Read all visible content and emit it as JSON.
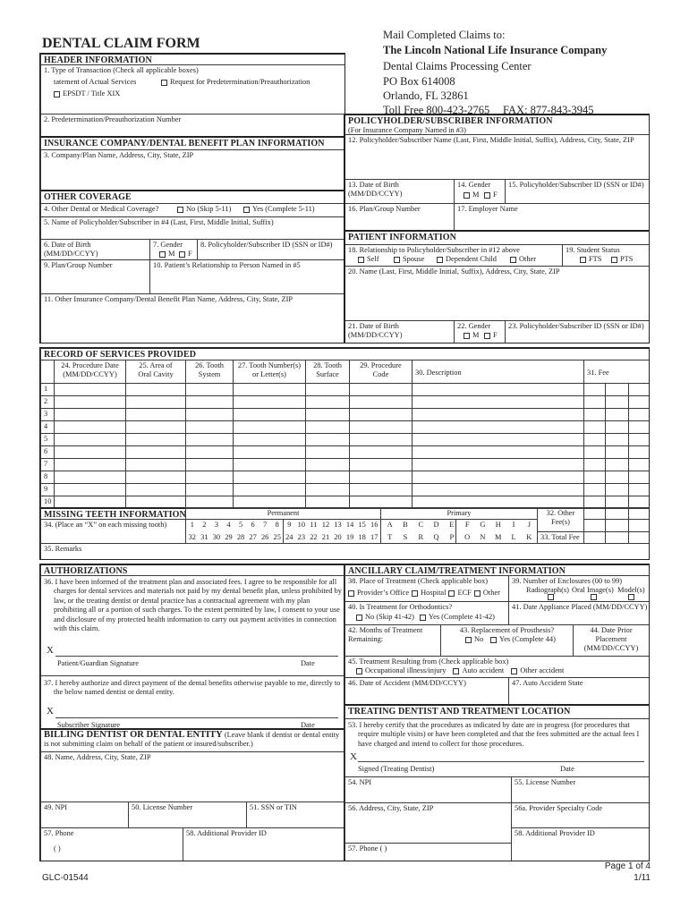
{
  "title": "DENTAL CLAIM FORM",
  "mail": {
    "line1": "Mail Completed Claims to:",
    "company": "The Lincoln National Life Insurance Company",
    "dept": "Dental Claims Processing Center",
    "pobox": "PO Box 614008",
    "city": "Orlando, FL 32861",
    "phone": "Toll Free 800-423-2765",
    "fax": "FAX: 877-843-3945"
  },
  "header_info": {
    "heading": "HEADER INFORMATION",
    "f1": "1. Type of Transaction (Check all applicable boxes)",
    "f1_opt_actual": "tatement of Actual Services",
    "f1_opt_predet": "Request for Predetermination/Preauthorization",
    "f1_opt_epsdt": "EPSDT / Title XIX",
    "f2": "2. Predetermination/Preauthorization Number"
  },
  "insurance": {
    "heading": "INSURANCE COMPANY/DENTAL BENEFIT PLAN INFORMATION",
    "f3": "3. Company/Plan Name, Address, City, State, ZIP"
  },
  "other_coverage": {
    "heading": "OTHER COVERAGE",
    "f4": "4. Other Dental or Medical Coverage?",
    "f4_no": "No (Skip 5-11)",
    "f4_yes": "Yes (Complete 5-11)",
    "f5": "5. Name of Policyholder/Subscriber in #4 (Last, First, Middle Initial, Suffix)",
    "f6": "6. Date of Birth (MM/DD/CCYY)",
    "f7": "7. Gender",
    "f8": "8. Policyholder/Subscriber ID (SSN or ID#)",
    "f9": "9. Plan/Group Number",
    "f10": "10. Patient’s Relationship to Person Named in #5",
    "f11": "11. Other Insurance Company/Dental Benefit Plan Name, Address, City, State, ZIP"
  },
  "gender": {
    "m": "M",
    "f": "F"
  },
  "policyholder": {
    "heading": "POLICYHOLDER/SUBSCRIBER INFORMATION",
    "subheading": "(For Insurance Company Named in #3)",
    "f12": "12. Policyholder/Subscriber Name (Last, First, Middle Initial, Suffix), Address, City, State, ZIP",
    "f13": "13. Date of Birth (MM/DD/CCYY)",
    "f14": "14. Gender",
    "f15": "15. Policyholder/Subscriber ID (SSN or ID#)",
    "f16": "16. Plan/Group Number",
    "f17": "17. Employer Name"
  },
  "patient": {
    "heading": "PATIENT INFORMATION",
    "f18": "18. Relationship to Policyholder/Subscriber in #12 above",
    "f18_opts": [
      "Self",
      "Spouse",
      "Dependent Child",
      "Other"
    ],
    "f19": "19. Student Status",
    "f19_opts": [
      "FTS",
      "PTS"
    ],
    "f20": "20. Name (Last, First, Middle Initial, Suffix), Address, City, State, ZIP",
    "f21": "21. Date of Birth (MM/DD/CCYY)",
    "f22": "22. Gender",
    "f23": "23. Policyholder/Subscriber ID (SSN or ID#)"
  },
  "services": {
    "heading": "RECORD OF SERVICES PROVIDED",
    "columns": [
      "",
      "24. Procedure Date\n(MM/DD/CCYY)",
      "25. Area of\nOral Cavity",
      "26. Tooth\nSystem",
      "27. Tooth Number(s)\nor Letter(s)",
      "28. Tooth\nSurface",
      "29. Procedure\nCode",
      "30. Description",
      "31. Fee"
    ],
    "rows": [
      "1",
      "2",
      "3",
      "4",
      "5",
      "6",
      "7",
      "8",
      "9",
      "10"
    ]
  },
  "missing_teeth": {
    "heading": "MISSING TEETH INFORMATION",
    "permanent": "Permanent",
    "primary": "Primary",
    "f34": "34. (Place an “X” on each missing tooth)",
    "perm_upper": [
      "1",
      "2",
      "3",
      "4",
      "5",
      "6",
      "7",
      "8",
      "9",
      "10",
      "11",
      "12",
      "13",
      "14",
      "15",
      "16"
    ],
    "perm_lower": [
      "32",
      "31",
      "30",
      "29",
      "28",
      "27",
      "26",
      "25",
      "24",
      "23",
      "22",
      "21",
      "20",
      "19",
      "18",
      "17"
    ],
    "prim_upper": [
      "A",
      "B",
      "C",
      "D",
      "E",
      "F",
      "G",
      "H",
      "I",
      "J"
    ],
    "prim_lower": [
      "T",
      "S",
      "R",
      "Q",
      "P",
      "O",
      "N",
      "M",
      "L",
      "K"
    ],
    "f32": "32. Other\nFee(s)",
    "f33": "33. Total Fee"
  },
  "remarks": "35. Remarks",
  "authorizations": {
    "heading": "AUTHORIZATIONS",
    "f36": "36. I have been informed of the treatment plan and associated fees. I agree to be responsible for all charges for dental services and materials not paid by my dental benefit plan, unless prohibited by law, or the treating dentist or dental practice has a contractual agreement with my plan prohibiting all or a portion of such charges. To the extent permitted by law, I consent to your use and disclosure of my protected health information to carry out payment activities in connection with this claim.",
    "x": "X",
    "patient_sig": "Patient/Guardian Signature",
    "date": "Date",
    "f37": "37. I hereby authorize and direct payment of the dental benefits otherwise payable to me, directly to the below named dentist or dental entity.",
    "subscriber_sig": "Subscriber Signature"
  },
  "billing": {
    "heading": "BILLING DENTIST OR DENTAL ENTITY",
    "note": "(Leave blank if dentist or dental entity is not submitting claim on behalf of the patient or insured/subscriber.)",
    "f48": "48. Name, Address, City, State, ZIP",
    "f49": "49. NPI",
    "f50": "50. License Number",
    "f51": "51. SSN or TIN",
    "f57": "57. Phone",
    "f57_paren": "(          )",
    "f58": "58. Additional Provider ID"
  },
  "ancillary": {
    "heading": "ANCILLARY CLAIM/TREATMENT INFORMATION",
    "f38": "38. Place of Treatment (Check applicable box)",
    "f38_opts": [
      "Provider’s Office",
      "Hospital",
      "ECF",
      "Other"
    ],
    "f39": "39. Number of Enclosures (00 to 99)",
    "f39_opts": [
      "Radiograph(s)",
      "Oral Image(s)",
      "Model(s)"
    ],
    "f40": "40. Is Treatment for Orthodontics?",
    "f40_no": "No (Skip 41-42)",
    "f40_yes": "Yes (Complete 41-42)",
    "f41": "41. Date Appliance Placed (MM/DD/CCYY)",
    "f42": "42. Months of Treatment\n      Remaining:",
    "f43": "43. Replacement of Prosthesis?",
    "f43_no": "No",
    "f43_yes": "Yes (Complete 44)",
    "f44": "44. Date Prior Placement\n(MM/DD/CCYY)",
    "f45": "45. Treatment Resulting from (Check applicable box)",
    "f45_opts": [
      "Occupational illness/injury",
      "Auto accident",
      "Other accident"
    ],
    "f46": "46. Date of Accident (MM/DD/CCYY)",
    "f47": "47. Auto Accident State"
  },
  "treating": {
    "heading": "TREATING DENTIST AND TREATMENT LOCATION",
    "f53": "53. I hereby certify that the procedures as indicated by date are in progress (for procedures that require multiple visits) or have been completed and that the fees submitted are the actual fees I have charged and intend to collect for those procedures.",
    "x": "X",
    "signed": "Signed (Treating Dentist)",
    "date": "Date",
    "f54": "54. NPI",
    "f55": "55. License Number",
    "f56": "56. Address, City, State, ZIP",
    "f56a": "56a. Provider Specialty Code",
    "f58": "58. Additional Provider ID",
    "f57": "57. Phone (           )"
  },
  "footer": {
    "page": "Page 1 of 4",
    "revision": "1/11",
    "form_number": "GLC-01544"
  }
}
